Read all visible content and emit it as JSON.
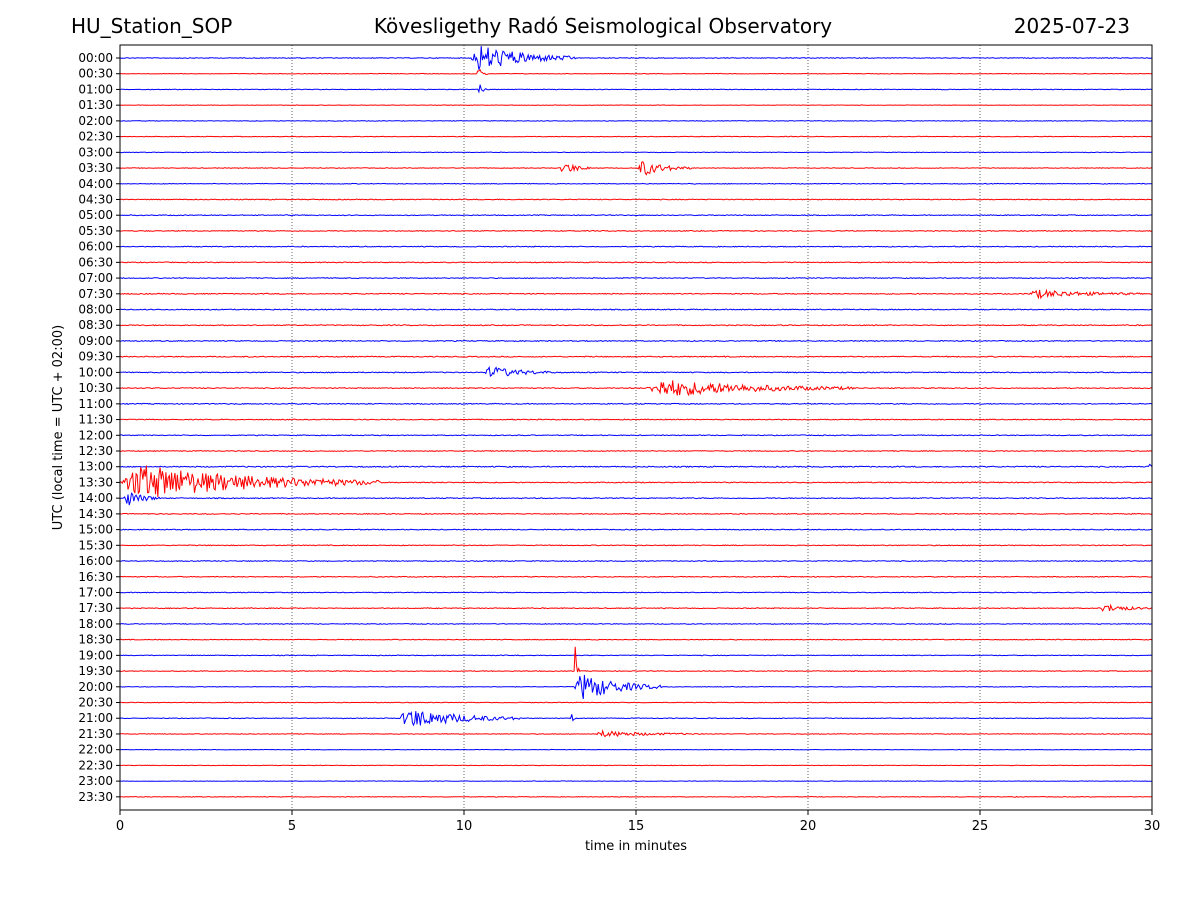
{
  "header": {
    "station": "HU_Station_SOP",
    "title": "Kövesligethy Radó Seismological Observatory",
    "date": "2025-07-23"
  },
  "chart_data": {
    "type": "line",
    "title": "Kövesligethy Radó Seismological Observatory",
    "xlabel": "time in minutes",
    "ylabel": "UTC (local time = UTC + 02:00)",
    "xlim": [
      0,
      30
    ],
    "x_ticks": [
      0,
      5,
      10,
      15,
      20,
      25,
      30
    ],
    "x_grid": "dotted vertical at 5-minute ticks",
    "colors": {
      "even_rows": "#0000ff",
      "odd_rows": "#ff0000"
    },
    "rows": [
      "00:00",
      "00:30",
      "01:00",
      "01:30",
      "02:00",
      "02:30",
      "03:00",
      "03:30",
      "04:00",
      "04:30",
      "05:00",
      "05:30",
      "06:00",
      "06:30",
      "07:00",
      "07:30",
      "08:00",
      "08:30",
      "09:00",
      "09:30",
      "10:00",
      "10:30",
      "11:00",
      "11:30",
      "12:00",
      "12:30",
      "13:00",
      "13:30",
      "14:00",
      "14:30",
      "15:00",
      "15:30",
      "16:00",
      "16:30",
      "17:00",
      "17:30",
      "18:00",
      "18:30",
      "19:00",
      "19:30",
      "20:00",
      "20:30",
      "21:00",
      "21:30",
      "22:00",
      "22:30",
      "23:00",
      "23:30"
    ],
    "noise_level": [
      0.3,
      0.25,
      0.25,
      0.2,
      0.25,
      0.25,
      0.25,
      0.25,
      0.3,
      0.35,
      0.35,
      0.35,
      0.35,
      0.35,
      0.35,
      0.4,
      0.4,
      0.4,
      0.4,
      0.4,
      0.4,
      0.4,
      0.4,
      0.35,
      0.35,
      0.35,
      0.45,
      0.4,
      0.4,
      0.35,
      0.35,
      0.35,
      0.35,
      0.35,
      0.3,
      0.35,
      0.3,
      0.3,
      0.3,
      0.3,
      0.25,
      0.25,
      0.3,
      0.25,
      0.2,
      0.2,
      0.2,
      0.25
    ],
    "events": [
      {
        "row": 0,
        "start": 10.2,
        "duration": 3.0,
        "amplitude": 14
      },
      {
        "row": 1,
        "start": 10.35,
        "duration": 0.3,
        "amplitude": 8
      },
      {
        "row": 2,
        "start": 10.4,
        "duration": 0.2,
        "amplitude": 10
      },
      {
        "row": 7,
        "start": 12.8,
        "duration": 0.9,
        "amplitude": 7
      },
      {
        "row": 7,
        "start": 15.05,
        "duration": 1.5,
        "amplitude": 8
      },
      {
        "row": 15,
        "start": 26.4,
        "duration": 3.2,
        "amplitude": 4
      },
      {
        "row": 20,
        "start": 10.6,
        "duration": 2.0,
        "amplitude": 6
      },
      {
        "row": 21,
        "start": 15.3,
        "duration": 6.0,
        "amplitude": 9
      },
      {
        "row": 26,
        "start": 29.9,
        "duration": 0.1,
        "amplitude": 16
      },
      {
        "row": 27,
        "start": 0.0,
        "duration": 7.5,
        "amplitude": 18
      },
      {
        "row": 28,
        "start": 0.1,
        "duration": 1.0,
        "amplitude": 9
      },
      {
        "row": 35,
        "start": 28.5,
        "duration": 1.5,
        "amplitude": 4
      },
      {
        "row": 40,
        "start": 13.2,
        "duration": 2.5,
        "amplitude": 14
      },
      {
        "row": 39,
        "start": 13.2,
        "duration": 0.1,
        "amplitude": 50
      },
      {
        "row": 42,
        "start": 8.1,
        "duration": 3.5,
        "amplitude": 10
      },
      {
        "row": 42,
        "start": 13.1,
        "duration": 0.1,
        "amplitude": 12
      },
      {
        "row": 43,
        "start": 13.8,
        "duration": 3.0,
        "amplitude": 3
      }
    ]
  }
}
